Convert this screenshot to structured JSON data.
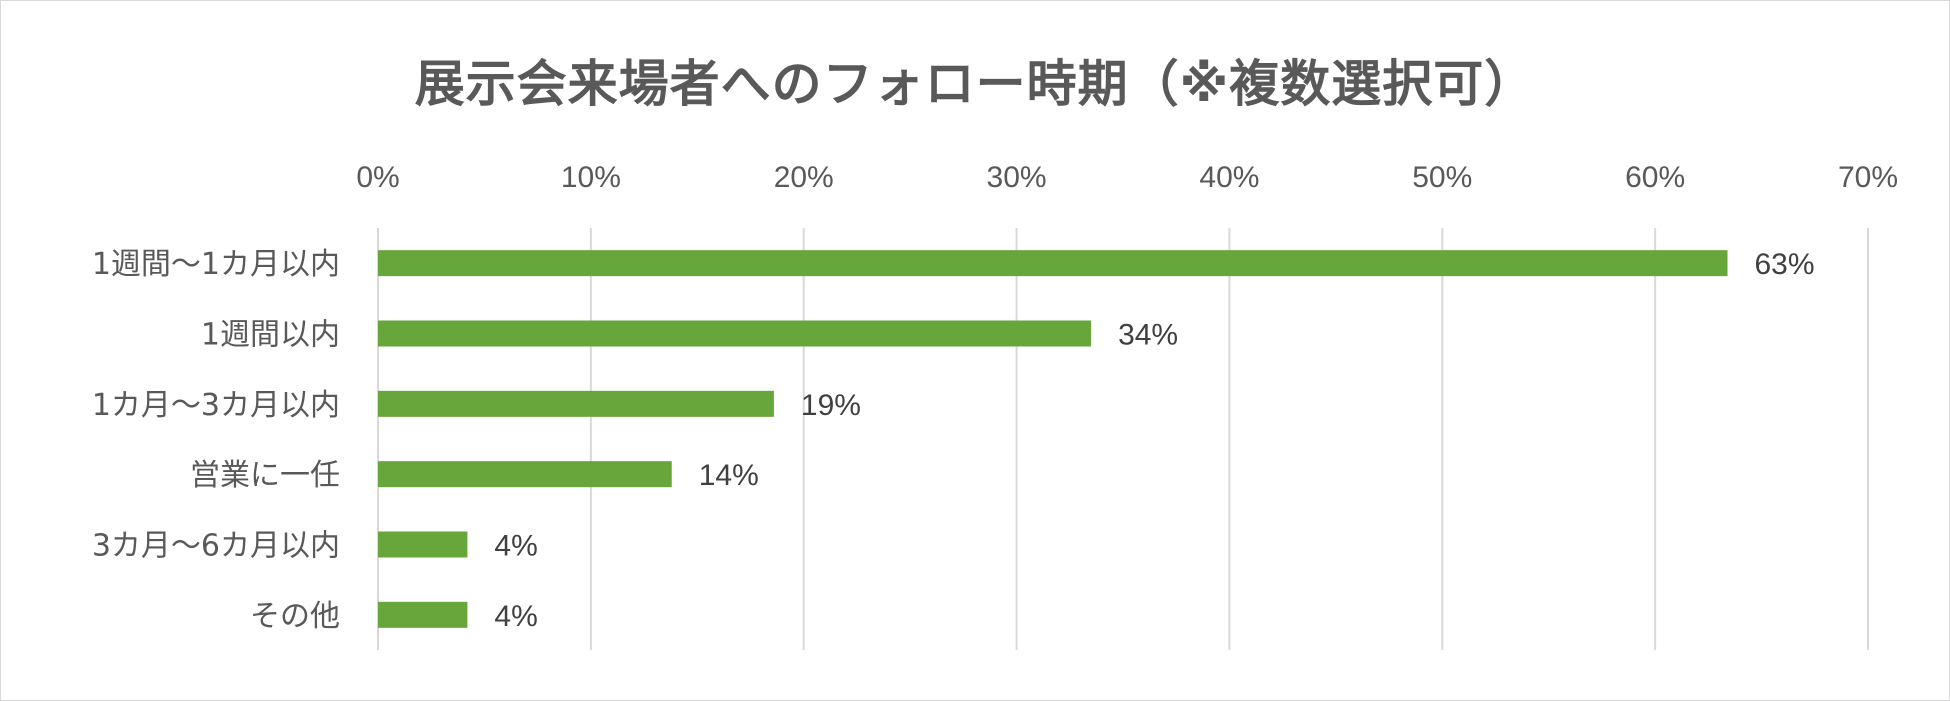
{
  "chart_data": {
    "type": "bar",
    "orientation": "horizontal",
    "title": "展示会来場者へのフォロー時期（※複数選択可）",
    "categories": [
      "1週間～1カ月以内",
      "1週間以内",
      "1カ月～3カ月以内",
      "営業に一任",
      "3カ月～6カ月以内",
      "その他"
    ],
    "values": [
      63.4,
      33.5,
      18.6,
      13.8,
      4.2,
      4.2
    ],
    "data_labels": [
      "63%",
      "34%",
      "19%",
      "14%",
      "4%",
      "4%"
    ],
    "x_ticks": [
      "0%",
      "10%",
      "20%",
      "30%",
      "40%",
      "50%",
      "60%",
      "70%"
    ],
    "xlim": [
      0,
      70
    ],
    "x_axis_position": "top",
    "grid": true,
    "bar_color": "#66a63b",
    "grid_color": "#d9d9d9"
  }
}
